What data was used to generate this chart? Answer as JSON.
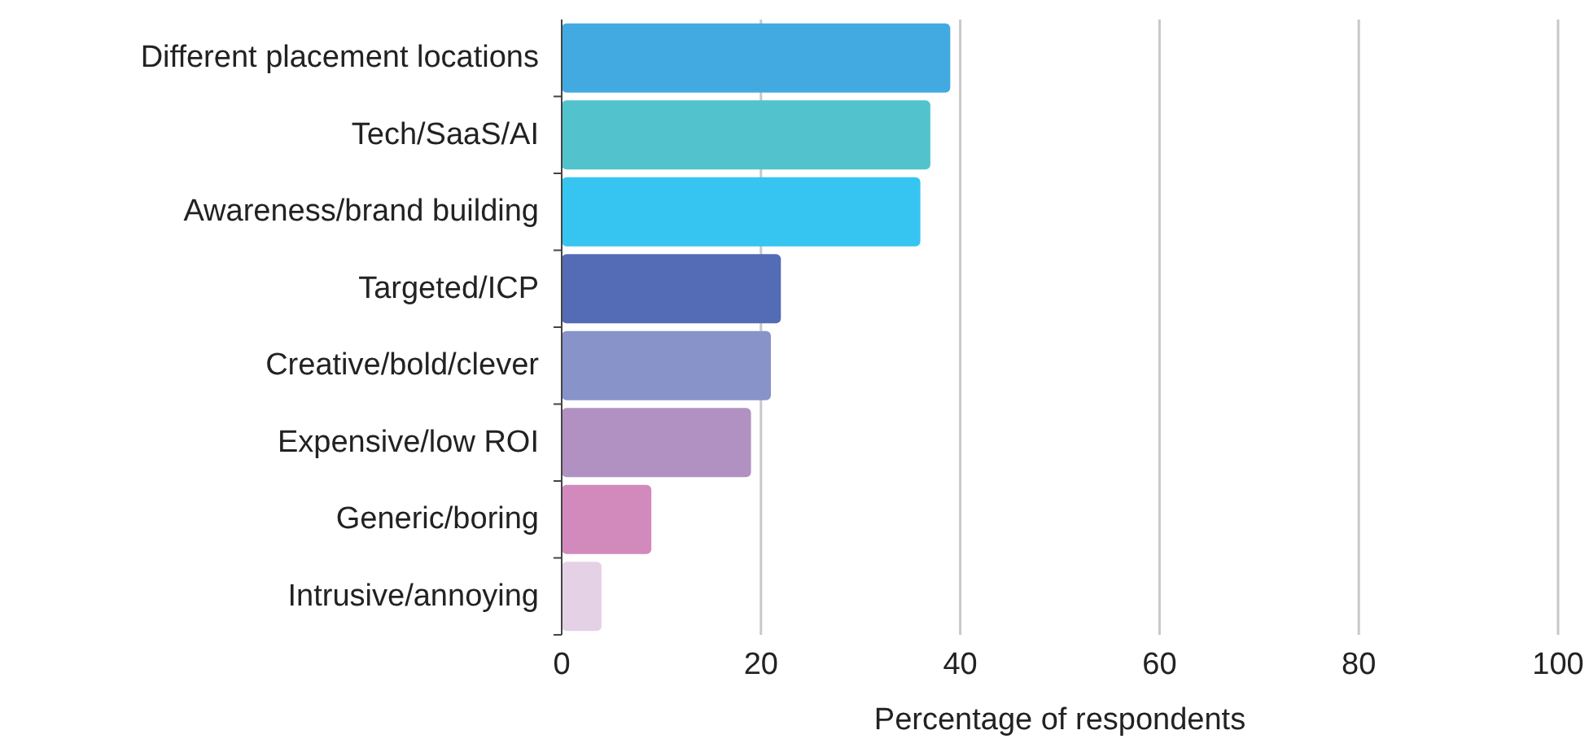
{
  "chart_data": {
    "type": "bar",
    "orientation": "horizontal",
    "xlabel": "Percentage of respondents",
    "categories": [
      "Different placement locations",
      "Tech/SaaS/AI",
      "Awareness/brand building",
      "Targeted/ICP",
      "Creative/bold/clever",
      "Expensive/low ROI",
      "Generic/boring",
      "Intrusive/annoying"
    ],
    "values": [
      39,
      37,
      36,
      22,
      21,
      19,
      9,
      4
    ],
    "colors": [
      "#42aae0",
      "#52c3cc",
      "#36c5f0",
      "#546cb5",
      "#8893c9",
      "#b191c2",
      "#d28abd",
      "#e5d1e6"
    ],
    "xlim": [
      0,
      100
    ],
    "xticks": [
      0,
      20,
      40,
      60,
      80,
      100
    ],
    "grid": "x"
  }
}
